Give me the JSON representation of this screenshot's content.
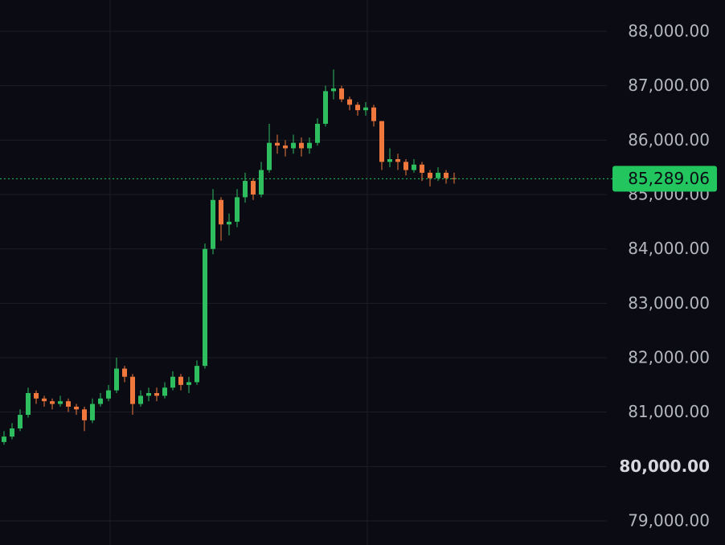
{
  "chart_data": {
    "type": "candlestick",
    "open": [
      80450,
      80550,
      80700,
      80950,
      81350,
      81250,
      81200,
      81150,
      81200,
      81100,
      81050,
      80850,
      81150,
      81250,
      81400,
      81800,
      81650,
      81150,
      81300,
      81350,
      81300,
      81450,
      81650,
      81500,
      81550,
      81850,
      84000,
      84900,
      84450,
      84500,
      84950,
      85250,
      85000,
      85450,
      85950,
      85900,
      85850,
      85950,
      85850,
      85950,
      86300,
      86900,
      86950,
      86750,
      86650,
      86550,
      86600,
      86350,
      85600,
      85650,
      85600,
      85450,
      85550,
      85400,
      85300,
      85400,
      85300
    ],
    "high": [
      80650,
      80800,
      81050,
      81450,
      81400,
      81300,
      81250,
      81300,
      81250,
      81150,
      81100,
      81250,
      81350,
      81500,
      82000,
      81850,
      81700,
      81400,
      81450,
      81450,
      81550,
      81750,
      81700,
      81650,
      81950,
      84100,
      85100,
      84950,
      84650,
      85100,
      85400,
      85300,
      85600,
      86300,
      86100,
      86000,
      86100,
      86050,
      86050,
      86400,
      87000,
      87300,
      87000,
      86800,
      86700,
      86700,
      86650,
      86350,
      85850,
      85750,
      85650,
      85650,
      85600,
      85450,
      85500,
      85450,
      85400
    ],
    "low": [
      80400,
      80500,
      80650,
      80900,
      81150,
      81100,
      81050,
      81100,
      81000,
      80950,
      80650,
      80800,
      81100,
      81200,
      81350,
      81550,
      80950,
      81100,
      81200,
      81200,
      81250,
      81400,
      81400,
      81350,
      81500,
      81800,
      83900,
      84150,
      84250,
      84400,
      84850,
      84900,
      84950,
      85400,
      85750,
      85700,
      85750,
      85700,
      85750,
      85900,
      86250,
      86750,
      86700,
      86550,
      86450,
      86450,
      86250,
      85450,
      85500,
      85450,
      85350,
      85400,
      85250,
      85150,
      85250,
      85200,
      85200
    ],
    "close": [
      80550,
      80700,
      80950,
      81350,
      81250,
      81200,
      81150,
      81200,
      81100,
      81050,
      80850,
      81150,
      81250,
      81400,
      81800,
      81650,
      81150,
      81300,
      81350,
      81300,
      81450,
      81650,
      81500,
      81550,
      81850,
      84000,
      84900,
      84450,
      84500,
      84950,
      85250,
      85000,
      85450,
      85950,
      85900,
      85850,
      85950,
      85850,
      85950,
      86300,
      86900,
      86950,
      86750,
      86650,
      86550,
      86600,
      86350,
      85600,
      85650,
      85600,
      85450,
      85550,
      85400,
      85300,
      85400,
      85300,
      85289.06
    ],
    "last_label": "85,289.06",
    "up_color": "#2ebd5f",
    "down_color": "#f0783c",
    "last_color": "#22c55e",
    "ylim": [
      78557,
      88576
    ],
    "yticks": [
      {
        "value": 79000,
        "label": "79,000.00"
      },
      {
        "value": 80000,
        "label": "80,000.00"
      },
      {
        "value": 81000,
        "label": "81,000.00"
      },
      {
        "value": 82000,
        "label": "82,000.00"
      },
      {
        "value": 83000,
        "label": "83,000.00"
      },
      {
        "value": 84000,
        "label": "84,000.00"
      },
      {
        "value": 85000,
        "label": "85,000.00"
      },
      {
        "value": 86000,
        "label": "86,000.00"
      },
      {
        "value": 87000,
        "label": "87,000.00"
      },
      {
        "value": 88000,
        "label": "88,000.00"
      }
    ],
    "strong_tick": 80000,
    "grid": true
  }
}
